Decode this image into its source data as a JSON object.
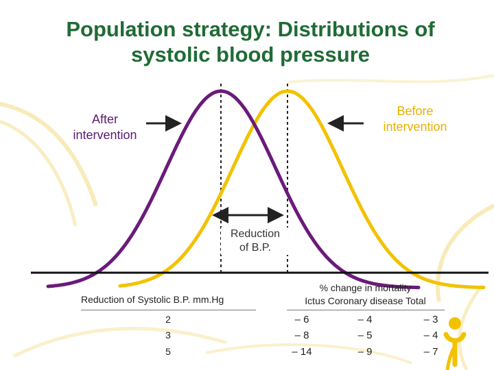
{
  "title": {
    "line1": "Population strategy: Distributions of",
    "line2": "systolic blood pressure"
  },
  "labels": {
    "after": [
      "After",
      "intervention"
    ],
    "before": [
      "Before",
      "intervention"
    ],
    "reduction": [
      "Reduction",
      "of B.P."
    ]
  },
  "colors": {
    "title": "#1f6b35",
    "after_curve": "#6a1b7a",
    "before_curve": "#f2c200",
    "decor": "#f6e6a8"
  },
  "table": {
    "left_header": "Reduction of Systolic B.P. mm.Hg",
    "right_header": {
      "line1": "% change in mortality",
      "line2": "Ictus Coronary disease Total"
    },
    "rows": [
      {
        "reduction": "2",
        "ictus": "– 6",
        "coronary": "– 4",
        "total": "– 3"
      },
      {
        "reduction": "3",
        "ictus": "– 8",
        "coronary": "– 5",
        "total": "– 4"
      },
      {
        "reduction": "5",
        "ictus": "– 14",
        "coronary": "– 9",
        "total": "– 7"
      }
    ]
  },
  "icons": {
    "logo": "person-figure-logo-icon",
    "arrows": [
      "right-arrow-icon",
      "left-arrow-icon",
      "double-arrow-icon"
    ]
  }
}
